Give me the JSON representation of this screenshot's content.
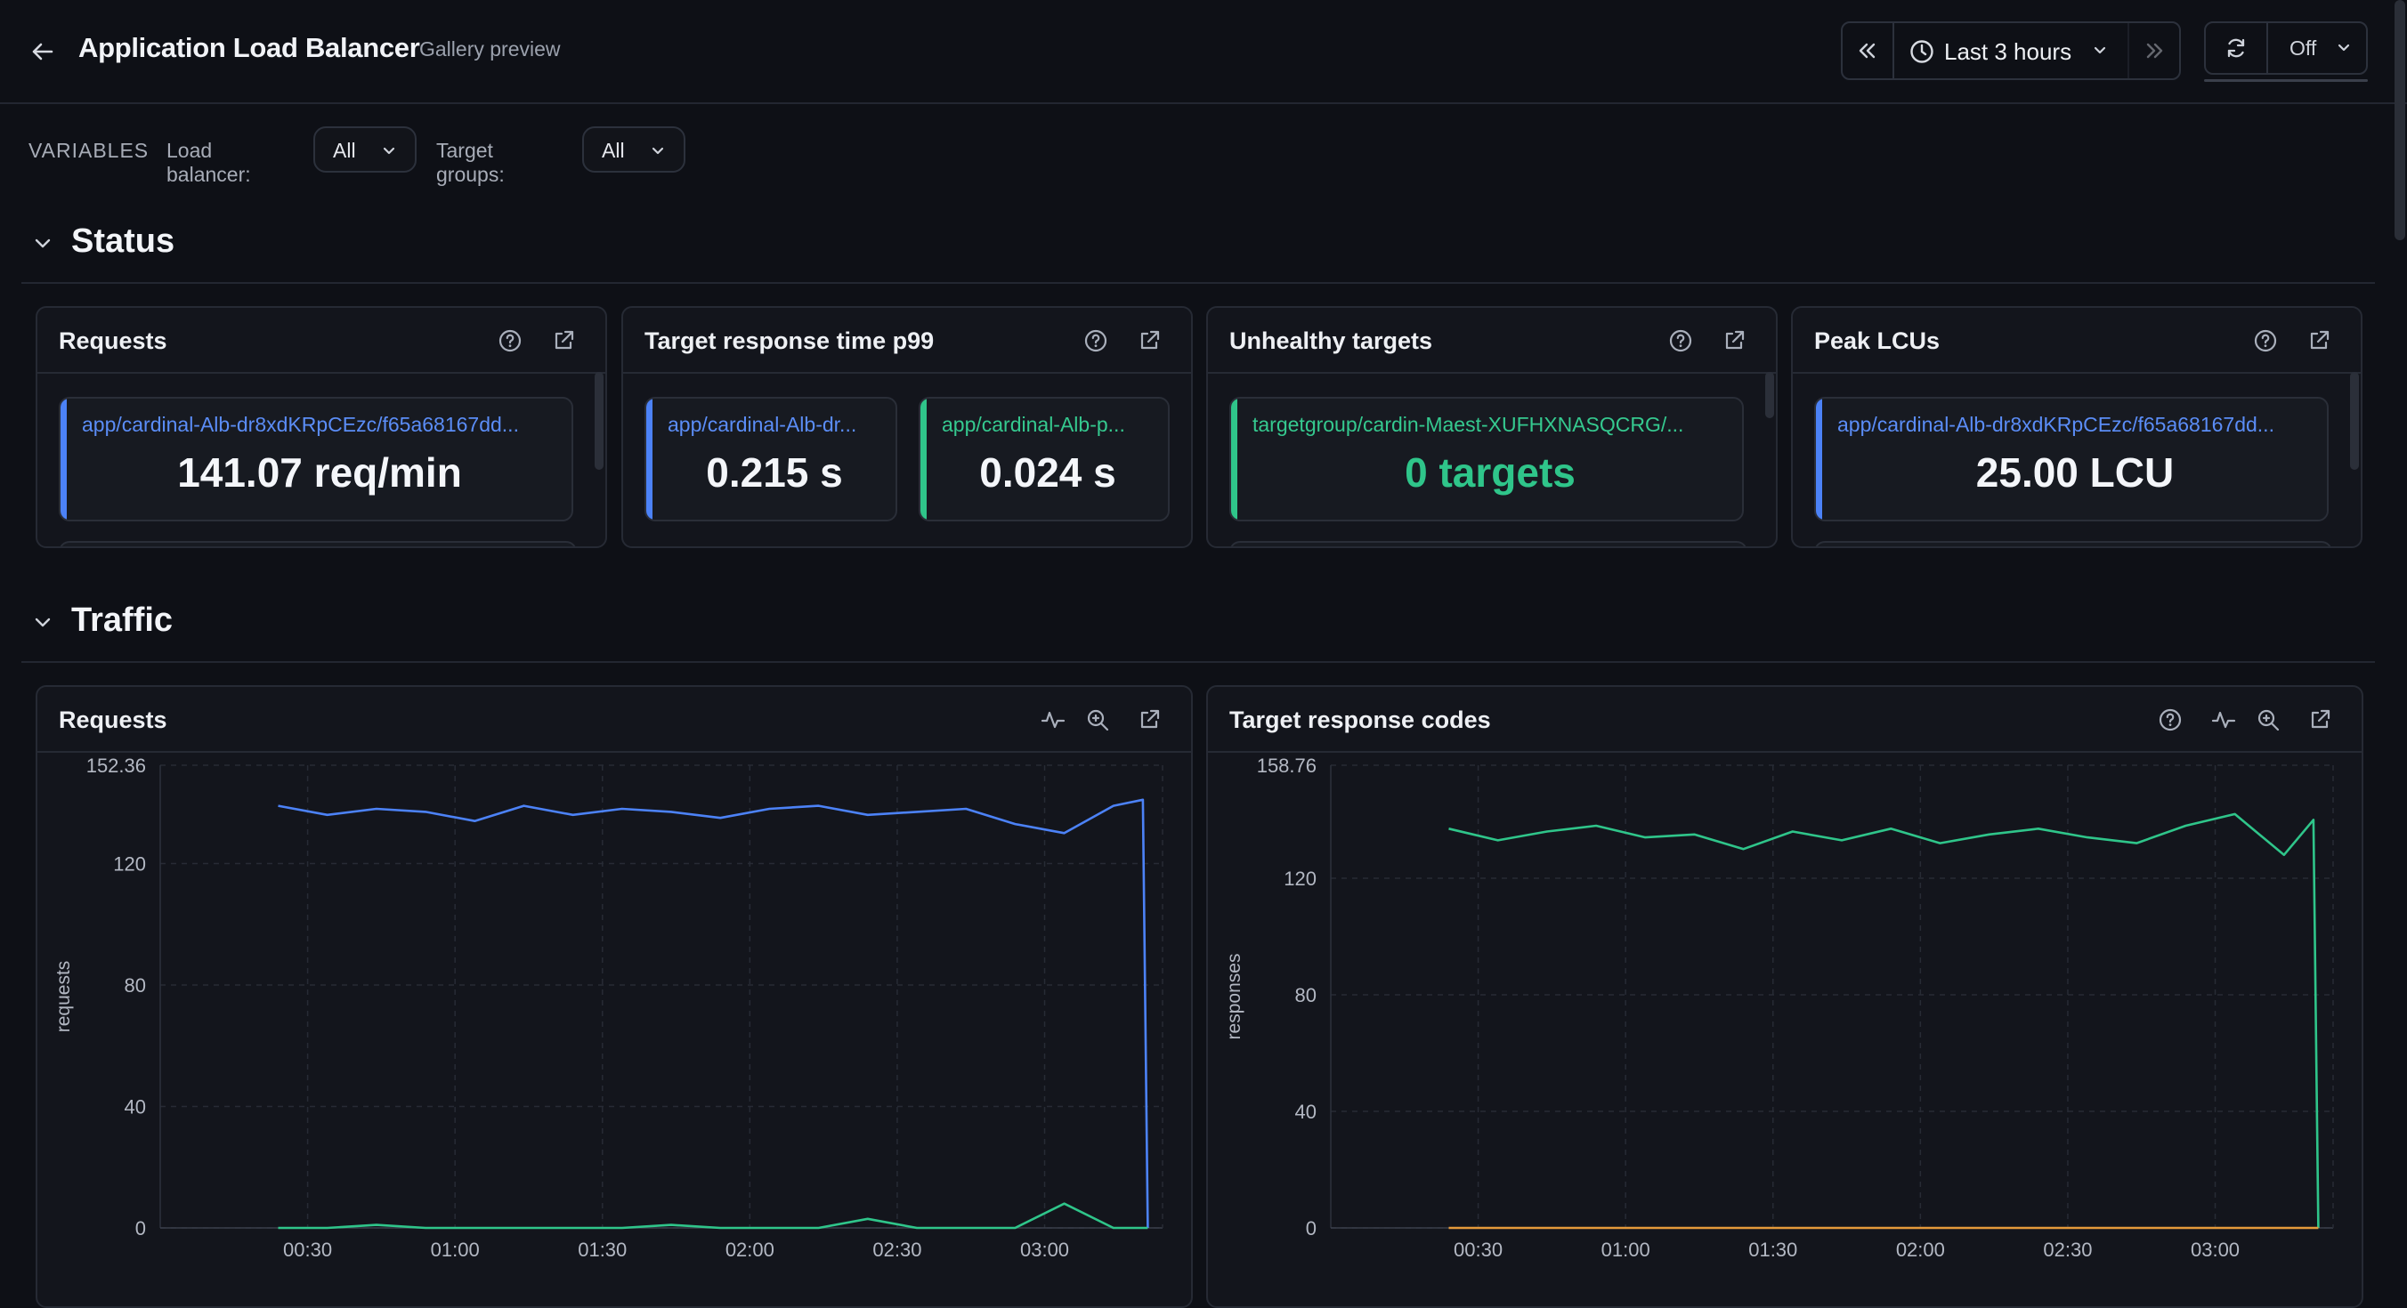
{
  "header": {
    "title": "Application Load Balancer",
    "subtitle": "Gallery preview",
    "time_range": "Last 3 hours",
    "refresh_interval": "Off"
  },
  "variables": {
    "label": "VARIABLES",
    "load_balancer": {
      "name": "Load balancer:",
      "value": "All"
    },
    "target_groups": {
      "name": "Target groups:",
      "value": "All"
    }
  },
  "sections": {
    "status": "Status",
    "traffic": "Traffic"
  },
  "status_panels": [
    {
      "title": "Requests",
      "stats": [
        {
          "name": "app/cardinal-Alb-dr8xdKRpCEzc/f65a68167dd...",
          "value": "141.07 req/min",
          "color": "#4c82f7"
        }
      ]
    },
    {
      "title": "Target response time p99",
      "stats": [
        {
          "name": "app/cardinal-Alb-dr...",
          "value": "0.215 s",
          "color": "#4c82f7"
        },
        {
          "name": "app/cardinal-Alb-p...",
          "value": "0.024 s",
          "color": "#2fc58a"
        }
      ]
    },
    {
      "title": "Unhealthy targets",
      "stats": [
        {
          "name": "targetgroup/cardin-Maest-XUFHXNASQCRG/...",
          "value": "0 targets",
          "color": "#2fc58a"
        }
      ]
    },
    {
      "title": "Peak LCUs",
      "stats": [
        {
          "name": "app/cardinal-Alb-dr8xdKRpCEzc/f65a68167dd...",
          "value": "25.00 LCU",
          "color": "#4c82f7"
        }
      ]
    }
  ],
  "traffic_panels": [
    {
      "title": "Requests"
    },
    {
      "title": "Target response codes"
    }
  ],
  "colors": {
    "blue": "#4c82f7",
    "green": "#2fc58a",
    "orange": "#e59a3a",
    "background": "#0e1016",
    "panel": "#13151c"
  },
  "chart_data": [
    {
      "type": "line",
      "title": "Requests",
      "xlabel": "",
      "ylabel": "requests",
      "ylim": [
        0,
        152.36
      ],
      "yticks": [
        "152.36",
        "120",
        "80",
        "40",
        "0"
      ],
      "xticks": [
        "00:30",
        "01:00",
        "01:30",
        "02:00",
        "02:30",
        "03:00"
      ],
      "x_minutes": [
        0,
        10,
        20,
        30,
        40,
        50,
        60,
        70,
        80,
        90,
        100,
        110,
        120,
        130,
        140,
        150,
        160,
        170,
        176,
        177
      ],
      "series": [
        {
          "color": "#4c82f7",
          "values": [
            139,
            136,
            138,
            137,
            134,
            139,
            136,
            138,
            137,
            135,
            138,
            139,
            136,
            137,
            138,
            133,
            130,
            139,
            141,
            0
          ]
        },
        {
          "color": "#2fc58a",
          "values": [
            0,
            0,
            1,
            0,
            0,
            0,
            0,
            0,
            1,
            0,
            0,
            0,
            3,
            0,
            0,
            0,
            8,
            0,
            0,
            0
          ]
        }
      ]
    },
    {
      "type": "line",
      "title": "Target response codes",
      "xlabel": "",
      "ylabel": "responses",
      "ylim": [
        0,
        158.76
      ],
      "yticks": [
        "158.76",
        "120",
        "80",
        "40",
        "0"
      ],
      "xticks": [
        "00:30",
        "01:00",
        "01:30",
        "02:00",
        "02:30",
        "03:00"
      ],
      "x_minutes": [
        0,
        10,
        20,
        30,
        40,
        50,
        60,
        70,
        80,
        90,
        100,
        110,
        120,
        130,
        140,
        150,
        160,
        170,
        176,
        177
      ],
      "series": [
        {
          "color": "#2fc58a",
          "values": [
            137,
            133,
            136,
            138,
            134,
            135,
            130,
            136,
            133,
            137,
            132,
            135,
            137,
            134,
            132,
            138,
            142,
            128,
            140,
            0
          ]
        },
        {
          "color": "#e59a3a",
          "values": [
            0,
            0,
            0,
            0,
            0,
            0,
            0,
            0,
            0,
            0,
            0,
            0,
            0,
            0,
            0,
            0,
            0,
            0,
            0,
            0
          ]
        }
      ]
    }
  ]
}
